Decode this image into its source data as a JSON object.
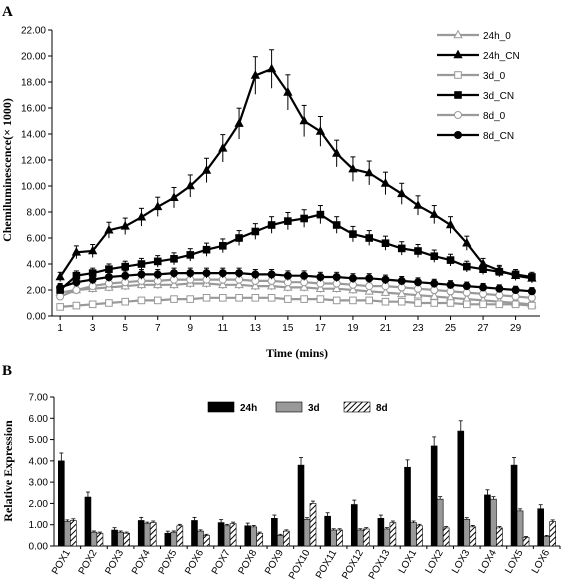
{
  "panels": {
    "a_label": "A",
    "b_label": "B"
  },
  "chart_data": [
    {
      "type": "line",
      "panel": "A",
      "title": "",
      "xlabel": "Time (mins)",
      "ylabel": "Chemiluminescence(× 1000)",
      "ylim": [
        0,
        22
      ],
      "xlim": [
        1,
        30
      ],
      "y_ticks": [
        "0.00",
        "2.00",
        "4.00",
        "6.00",
        "8.00",
        "10.00",
        "12.00",
        "14.00",
        "16.00",
        "18.00",
        "20.00",
        "22.00"
      ],
      "x_ticks": [
        "1",
        "3",
        "5",
        "7",
        "9",
        "11",
        "13",
        "15",
        "17",
        "19",
        "21",
        "23",
        "25",
        "27",
        "29"
      ],
      "x": [
        1,
        2,
        3,
        4,
        5,
        6,
        7,
        8,
        9,
        10,
        11,
        12,
        13,
        14,
        15,
        16,
        17,
        18,
        19,
        20,
        21,
        22,
        23,
        24,
        25,
        26,
        27,
        28,
        29,
        30
      ],
      "legend_position": "right",
      "series": [
        {
          "name": "24h_0",
          "color": "#999999",
          "marker": "triangle",
          "filled": false,
          "values": [
            1.8,
            2.0,
            2.1,
            2.2,
            2.3,
            2.4,
            2.4,
            2.4,
            2.5,
            2.5,
            2.4,
            2.4,
            2.3,
            2.3,
            2.2,
            2.2,
            2.1,
            2.1,
            2.0,
            1.9,
            1.8,
            1.7,
            1.6,
            1.5,
            1.4,
            1.3,
            1.2,
            1.1,
            1.0,
            0.9
          ]
        },
        {
          "name": "24h_CN",
          "color": "#000000",
          "marker": "triangle",
          "filled": true,
          "values": [
            3.0,
            4.9,
            5.0,
            6.6,
            6.9,
            7.6,
            8.4,
            9.1,
            10.0,
            11.2,
            12.9,
            14.8,
            18.5,
            19.0,
            17.2,
            15.0,
            14.2,
            12.5,
            11.3,
            11.0,
            10.2,
            9.4,
            8.5,
            7.8,
            7.0,
            5.6,
            4.0,
            3.5,
            3.1,
            2.9
          ]
        },
        {
          "name": "3d_0",
          "color": "#999999",
          "marker": "square",
          "filled": false,
          "values": [
            0.7,
            0.8,
            0.9,
            1.0,
            1.1,
            1.2,
            1.2,
            1.3,
            1.3,
            1.4,
            1.4,
            1.4,
            1.4,
            1.4,
            1.3,
            1.3,
            1.3,
            1.2,
            1.2,
            1.2,
            1.1,
            1.1,
            1.0,
            1.0,
            1.0,
            0.9,
            0.9,
            0.9,
            0.9,
            0.8
          ]
        },
        {
          "name": "3d_CN",
          "color": "#000000",
          "marker": "square",
          "filled": true,
          "values": [
            2.0,
            3.1,
            3.3,
            3.6,
            3.8,
            4.0,
            4.2,
            4.4,
            4.7,
            5.1,
            5.4,
            6.0,
            6.5,
            7.0,
            7.3,
            7.5,
            7.8,
            7.0,
            6.3,
            6.0,
            5.6,
            5.2,
            5.0,
            4.6,
            4.3,
            3.8,
            3.6,
            3.4,
            3.2,
            3.0
          ]
        },
        {
          "name": "8d_0",
          "color": "#999999",
          "marker": "circle",
          "filled": false,
          "values": [
            1.5,
            2.0,
            2.3,
            2.5,
            2.6,
            2.7,
            2.7,
            2.8,
            2.8,
            2.8,
            2.8,
            2.8,
            2.7,
            2.7,
            2.6,
            2.6,
            2.5,
            2.5,
            2.4,
            2.3,
            2.3,
            2.2,
            2.1,
            2.0,
            1.9,
            1.8,
            1.7,
            1.6,
            1.5,
            1.4
          ]
        },
        {
          "name": "8d_CN",
          "color": "#000000",
          "marker": "circle",
          "filled": true,
          "values": [
            2.2,
            2.6,
            2.8,
            3.0,
            3.1,
            3.2,
            3.2,
            3.3,
            3.3,
            3.3,
            3.3,
            3.3,
            3.2,
            3.2,
            3.1,
            3.1,
            3.0,
            3.0,
            2.9,
            2.9,
            2.8,
            2.7,
            2.6,
            2.5,
            2.4,
            2.3,
            2.2,
            2.1,
            2.0,
            1.9
          ]
        }
      ]
    },
    {
      "type": "bar",
      "panel": "B",
      "title": "",
      "xlabel": "",
      "ylabel": "Relative Expression",
      "ylim": [
        0,
        7
      ],
      "y_ticks": [
        "0.00",
        "1.00",
        "2.00",
        "3.00",
        "4.00",
        "5.00",
        "6.00",
        "7.00"
      ],
      "categories": [
        "POX1",
        "POX2",
        "POX3",
        "POX4",
        "POX5",
        "POX6",
        "POX7",
        "POX8",
        "POX9",
        "POX10",
        "POX11",
        "POX12",
        "POX13",
        "LOX1",
        "LOX2",
        "LOX3",
        "LOX4",
        "LOX5",
        "LOX6"
      ],
      "legend_position": "top-center",
      "series": [
        {
          "name": "24h",
          "fill": "#000000",
          "values": [
            4.0,
            2.3,
            0.75,
            1.2,
            0.6,
            1.2,
            1.1,
            0.95,
            1.3,
            3.8,
            1.4,
            1.95,
            1.3,
            3.7,
            4.7,
            5.4,
            2.4,
            3.8,
            1.75
          ]
        },
        {
          "name": "3d",
          "fill": "#999999",
          "values": [
            1.15,
            0.65,
            0.65,
            1.05,
            0.65,
            0.7,
            0.95,
            0.9,
            0.5,
            1.25,
            0.75,
            0.75,
            0.8,
            1.1,
            2.2,
            1.25,
            2.2,
            1.65,
            0.45
          ]
        },
        {
          "name": "8d",
          "fill": "hatch",
          "values": [
            1.2,
            0.6,
            0.6,
            1.1,
            0.95,
            0.5,
            1.05,
            0.6,
            0.7,
            2.0,
            0.75,
            0.8,
            1.1,
            0.95,
            0.85,
            0.9,
            0.85,
            0.4,
            1.15
          ]
        }
      ]
    }
  ]
}
